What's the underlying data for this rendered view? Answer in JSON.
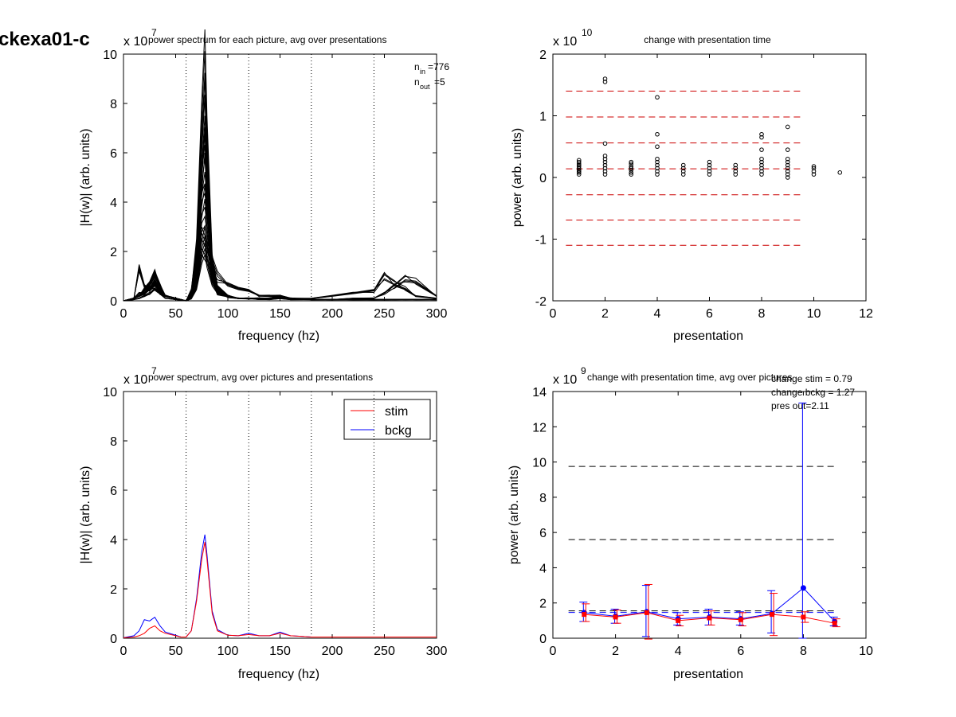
{
  "figure": {
    "id_label": "ckexa01-c"
  },
  "panels": {
    "tl": {
      "title": "power spectrum for each picture, avg over presentations",
      "multiplier_base": "x 10",
      "multiplier_exp": "7",
      "xlabel": "frequency (hz)",
      "ylabel": "|H(w)| (arb. units)",
      "xticks": [
        "0",
        "50",
        "100",
        "150",
        "200",
        "250",
        "300"
      ],
      "yticks": [
        "0",
        "2",
        "4",
        "6",
        "8",
        "10"
      ],
      "note_nin_base": "n",
      "note_nin_sub": "in",
      "note_nin_val": "=776",
      "note_nout_base": "n",
      "note_nout_sub": "out",
      "note_nout_val": "=5"
    },
    "tr": {
      "title": "change with presentation time",
      "multiplier_base": "x 10",
      "multiplier_exp": "10",
      "xlabel": "presentation",
      "ylabel": "power (arb. units)",
      "xticks": [
        "0",
        "2",
        "4",
        "6",
        "8",
        "10",
        "12"
      ],
      "yticks": [
        "-2",
        "-1",
        "0",
        "1",
        "2"
      ]
    },
    "bl": {
      "title": "power spectrum, avg over pictures and presentations",
      "multiplier_base": "x 10",
      "multiplier_exp": "7",
      "xlabel": "frequency (hz)",
      "ylabel": "|H(w)| (arb. units)",
      "xticks": [
        "0",
        "50",
        "100",
        "150",
        "200",
        "250",
        "300"
      ],
      "yticks": [
        "0",
        "2",
        "4",
        "6",
        "8",
        "10"
      ],
      "legend": [
        "stim",
        "bckg"
      ]
    },
    "br": {
      "title": "change with presentation time, avg over pictures",
      "multiplier_base": "x 10",
      "multiplier_exp": "9",
      "xlabel": "presentation",
      "ylabel": "power (arb. units)",
      "xticks": [
        "0",
        "2",
        "4",
        "6",
        "8",
        "10"
      ],
      "yticks": [
        "0",
        "2",
        "4",
        "6",
        "8",
        "10",
        "12",
        "14"
      ],
      "notes": [
        "change stim = 0.79",
        "change bckg = 1.27",
        "pres out=2.11"
      ]
    }
  },
  "colors": {
    "stim": "#ff0000",
    "bckg": "#0000ff",
    "dashed_red": "#cc0000",
    "dashed_black": "#000000"
  },
  "chart_data": [
    {
      "type": "line",
      "panel": "tl",
      "x_unit": "hz",
      "xlim": [
        0,
        300
      ],
      "ylim": [
        0,
        10
      ],
      "y_scale_factor": "1e7",
      "vertical_dotted_lines_x": [
        60,
        120,
        180,
        240,
        300
      ],
      "grid": false,
      "series_count_visible": 30,
      "x": [
        0,
        10,
        15,
        20,
        25,
        30,
        35,
        40,
        50,
        55,
        60,
        65,
        70,
        75,
        78,
        80,
        85,
        90,
        100,
        110,
        120,
        130,
        140,
        150,
        160,
        180,
        200,
        220,
        240,
        250,
        260,
        270,
        280,
        300
      ],
      "series": [
        {
          "values": [
            0,
            0.1,
            0.3,
            0.3,
            0.5,
            0.7,
            0.4,
            0.2,
            0.1,
            0.05,
            0,
            0.3,
            1.5,
            4.5,
            5.5,
            4,
            1.2,
            0.4,
            0.15,
            0.1,
            0.08,
            0.1,
            0.1,
            0.15,
            0.1,
            0.05,
            0.05,
            0.05,
            0.05,
            0.05,
            0.05,
            0.05,
            0.05,
            0.05
          ]
        },
        {
          "values": [
            0,
            0.1,
            0.2,
            0.4,
            0.6,
            0.9,
            0.5,
            0.2,
            0.1,
            0.05,
            0,
            0.3,
            2,
            6.5,
            8.8,
            6,
            1.5,
            0.5,
            0.2,
            0.1,
            0.1,
            0.1,
            0.1,
            0.2,
            0.1,
            0.05,
            0.05,
            0.05,
            0.05,
            0.05,
            0.05,
            0.05,
            0.05,
            0.05
          ]
        },
        {
          "values": [
            0,
            0.1,
            1.4,
            0.6,
            0.4,
            0.6,
            0.3,
            0.2,
            0.1,
            0.05,
            0,
            0.2,
            1.2,
            3.5,
            3.8,
            3,
            1,
            0.3,
            0.15,
            0.1,
            0.1,
            0.1,
            0.1,
            0.15,
            0.1,
            0.05,
            0.05,
            0.05,
            0.05,
            0.05,
            0.05,
            0.05,
            0.05,
            0.05
          ]
        },
        {
          "values": [
            0,
            0.1,
            0.2,
            0.5,
            0.7,
            1.1,
            0.6,
            0.2,
            0.1,
            0.05,
            0,
            0.4,
            1.8,
            5.5,
            7.5,
            5.2,
            1.2,
            0.5,
            0.15,
            0.1,
            0.1,
            0.1,
            0.1,
            0.2,
            0.1,
            0.05,
            0.05,
            0.05,
            0.05,
            0.05,
            0.05,
            0.05,
            0.05,
            0.05
          ]
        },
        {
          "values": [
            0,
            0.1,
            0.2,
            0.3,
            0.5,
            0.8,
            0.4,
            0.2,
            0.1,
            0.05,
            0,
            0.2,
            0.8,
            2.5,
            2.2,
            2,
            1.5,
            1,
            0.7,
            0.5,
            0.4,
            0.2,
            0.2,
            0.2,
            0.1,
            0.1,
            0.2,
            0.3,
            0.4,
            1.0,
            0.7,
            0.5,
            0.2,
            0.1
          ]
        },
        {
          "values": [
            0,
            0.05,
            0.1,
            0.2,
            0.3,
            0.5,
            0.3,
            0.1,
            0.05,
            0.03,
            0,
            0.1,
            0.6,
            2.0,
            2.5,
            1.8,
            0.8,
            0.4,
            0.2,
            0.1,
            0.1,
            0.05,
            0.05,
            0.1,
            0.05,
            0.05,
            0.05,
            0.1,
            0.1,
            0.3,
            0.6,
            0.9,
            0.8,
            0.2
          ]
        }
      ]
    },
    {
      "type": "scatter",
      "panel": "tr",
      "xlim": [
        0,
        12
      ],
      "ylim": [
        -2,
        2
      ],
      "y_scale_factor": "1e10",
      "dashed_lines_red_y": [
        1.4,
        0.98,
        0.56,
        0.14,
        -0.28,
        -0.69,
        -1.1
      ],
      "points": [
        {
          "x": 1,
          "y": [
            0.05,
            0.08,
            0.1,
            0.12,
            0.15,
            0.18,
            0.2,
            0.22,
            0.25,
            0.28
          ]
        },
        {
          "x": 2,
          "y": [
            0.05,
            0.1,
            0.15,
            0.2,
            0.25,
            0.3,
            0.35,
            0.55,
            1.55,
            1.6
          ]
        },
        {
          "x": 3,
          "y": [
            0.05,
            0.08,
            0.12,
            0.15,
            0.18,
            0.22,
            0.25
          ]
        },
        {
          "x": 4,
          "y": [
            0.05,
            0.1,
            0.15,
            0.2,
            0.25,
            0.3,
            0.5,
            0.7,
            1.3
          ]
        },
        {
          "x": 5,
          "y": [
            0.05,
            0.1,
            0.15,
            0.2
          ]
        },
        {
          "x": 6,
          "y": [
            0.05,
            0.1,
            0.15,
            0.2,
            0.25
          ]
        },
        {
          "x": 7,
          "y": [
            0.05,
            0.1,
            0.15,
            0.2
          ]
        },
        {
          "x": 8,
          "y": [
            0.05,
            0.1,
            0.15,
            0.2,
            0.25,
            0.3,
            0.45,
            0.65,
            0.7
          ]
        },
        {
          "x": 9,
          "y": [
            0.0,
            0.05,
            0.1,
            0.15,
            0.2,
            0.25,
            0.3,
            0.45,
            0.82
          ]
        },
        {
          "x": 10,
          "y": [
            0.05,
            0.1,
            0.15,
            0.18
          ]
        },
        {
          "x": 11,
          "y": [
            0.08
          ]
        }
      ]
    },
    {
      "type": "line",
      "panel": "bl",
      "xlim": [
        0,
        300
      ],
      "ylim": [
        0,
        10
      ],
      "y_scale_factor": "1e7",
      "vertical_dotted_lines_x": [
        60,
        120,
        180,
        240,
        300
      ],
      "legend_position": "top-right",
      "x": [
        0,
        10,
        15,
        20,
        25,
        30,
        35,
        40,
        50,
        55,
        60,
        65,
        70,
        75,
        78,
        80,
        85,
        90,
        100,
        110,
        120,
        130,
        140,
        150,
        160,
        180,
        200,
        220,
        240,
        260,
        280,
        300
      ],
      "series": [
        {
          "name": "stim",
          "values": [
            0.02,
            0.05,
            0.1,
            0.2,
            0.4,
            0.5,
            0.3,
            0.2,
            0.1,
            0.05,
            0.05,
            0.3,
            1.5,
            3.2,
            3.9,
            3.2,
            1.0,
            0.3,
            0.12,
            0.1,
            0.15,
            0.1,
            0.1,
            0.2,
            0.1,
            0.05,
            0.05,
            0.05,
            0.05,
            0.05,
            0.05,
            0.05
          ]
        },
        {
          "name": "bckg",
          "values": [
            0.02,
            0.1,
            0.3,
            0.75,
            0.7,
            0.85,
            0.5,
            0.25,
            0.12,
            0.05,
            0.05,
            0.3,
            1.6,
            3.5,
            4.2,
            3.4,
            1.1,
            0.35,
            0.12,
            0.1,
            0.2,
            0.1,
            0.1,
            0.25,
            0.1,
            0.05,
            0.05,
            0.05,
            0.05,
            0.05,
            0.05,
            0.05
          ]
        }
      ]
    },
    {
      "type": "line",
      "panel": "br",
      "xlim": [
        0,
        10
      ],
      "ylim": [
        0,
        14
      ],
      "y_scale_factor": "1e9",
      "dashed_lines_black_y": [
        9.75,
        5.6,
        1.55
      ],
      "dashed_line_blue_y": 1.55,
      "x": [
        1,
        2,
        3,
        4,
        5,
        6,
        7,
        8,
        9
      ],
      "series": [
        {
          "name": "stim",
          "values": [
            1.35,
            1.2,
            1.45,
            1.0,
            1.15,
            1.05,
            1.35,
            1.2,
            0.85
          ],
          "err_low": [
            0.4,
            0.35,
            1.5,
            0.3,
            0.4,
            0.35,
            1.2,
            0.3,
            0.2
          ],
          "err_high": [
            0.6,
            0.4,
            1.6,
            0.3,
            0.4,
            0.4,
            1.2,
            0.3,
            0.25
          ]
        },
        {
          "name": "bckg",
          "values": [
            1.45,
            1.25,
            1.5,
            1.1,
            1.2,
            1.1,
            1.4,
            2.85,
            0.95
          ],
          "err_low": [
            0.5,
            0.4,
            1.4,
            0.35,
            0.45,
            0.35,
            1.1,
            2.85,
            0.25
          ],
          "err_high": [
            0.6,
            0.4,
            1.5,
            0.35,
            0.45,
            0.4,
            1.3,
            10.5,
            0.25
          ]
        }
      ]
    }
  ]
}
